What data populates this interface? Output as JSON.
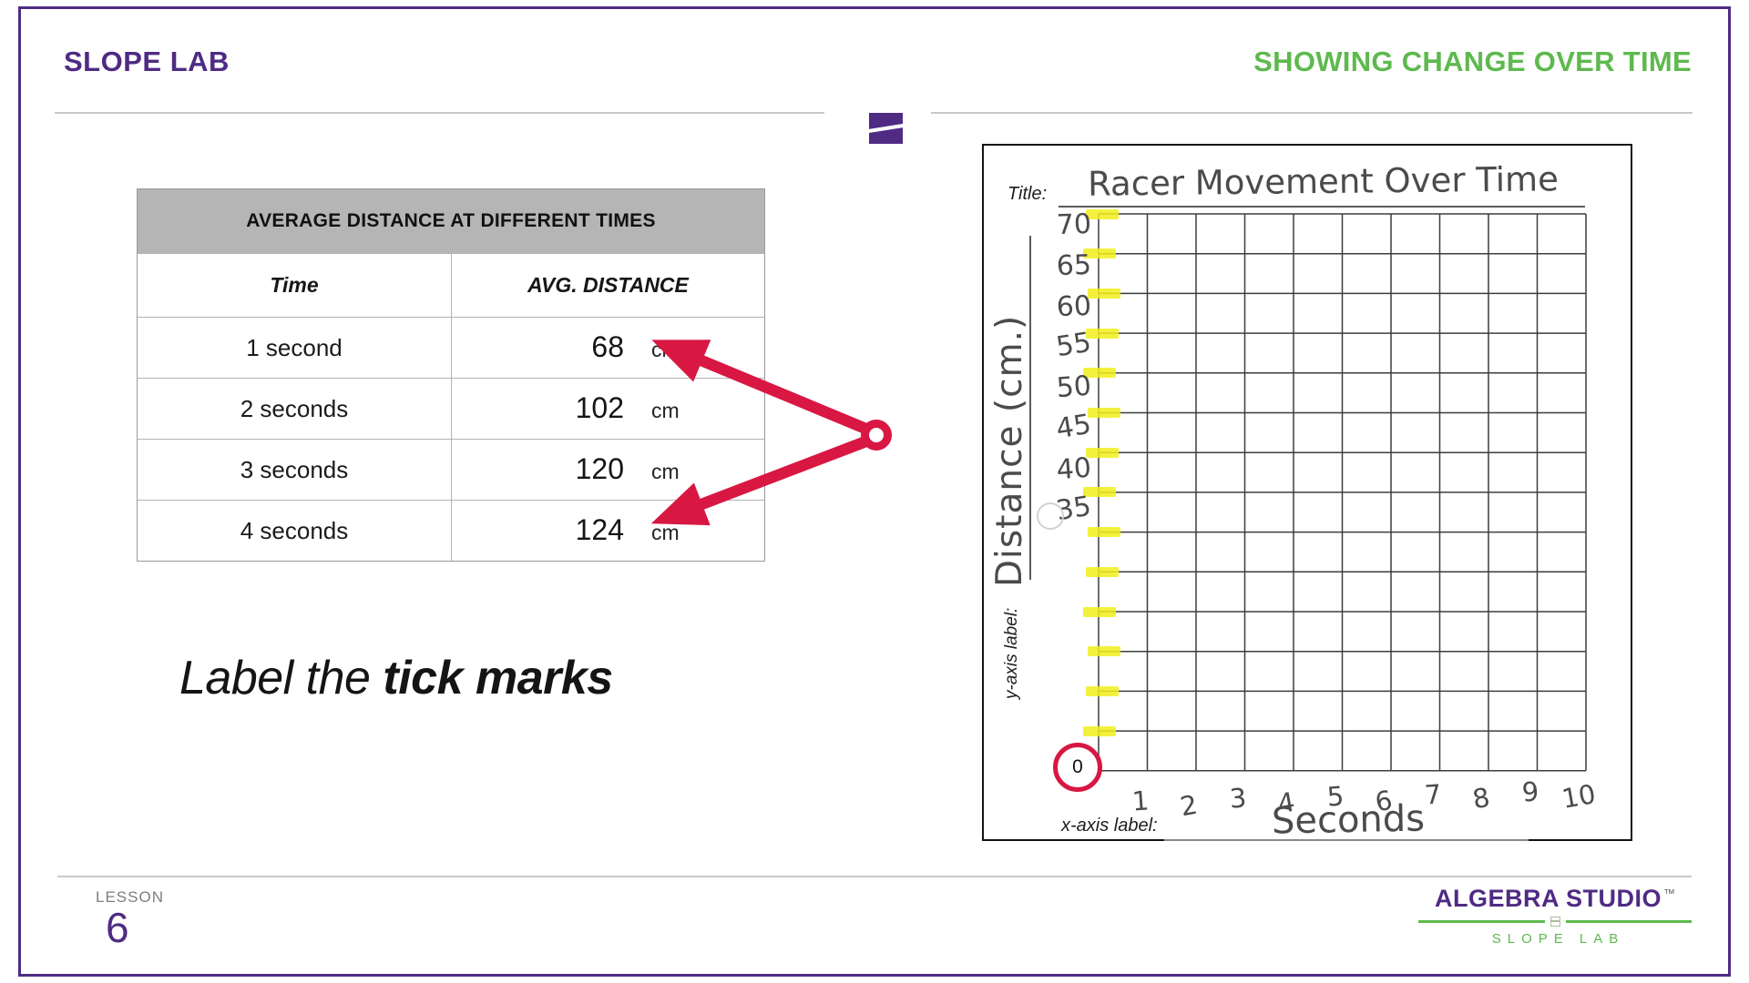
{
  "slide": {
    "brand": "SLOPE LAB",
    "headline": "SHOWING CHANGE OVER TIME",
    "lesson_label": "LESSON",
    "lesson_number": "6"
  },
  "table": {
    "title": "AVERAGE DISTANCE AT DIFFERENT TIMES",
    "col_time": "Time",
    "col_distance": "AVG. DISTANCE",
    "rows": [
      {
        "time": "1 second",
        "value": "68",
        "unit": "cm"
      },
      {
        "time": "2 seconds",
        "value": "102",
        "unit": "cm"
      },
      {
        "time": "3 seconds",
        "value": "120",
        "unit": "cm"
      },
      {
        "time": "4 seconds",
        "value": "124",
        "unit": "cm"
      }
    ]
  },
  "instruction": {
    "prefix": "Label the ",
    "emphasis": "tick marks"
  },
  "graph": {
    "title_caption": "Title:",
    "title_value": "Racer Movement Over Time",
    "y_axis_caption": "y-axis label:",
    "y_axis_value": "Distance (cm.)",
    "x_axis_caption": "x-axis label:",
    "x_axis_value": "Seconds",
    "origin_label": "0",
    "y_tick_labels": [
      "70",
      "65",
      "60",
      "55",
      "50",
      "45",
      "40",
      "35"
    ],
    "x_tick_labels": [
      "1",
      "2",
      "3",
      "4",
      "5",
      "6",
      "7",
      "8",
      "9",
      "10"
    ],
    "grid_cols": 10,
    "grid_rows": 14
  },
  "logo": {
    "line1": "ALGEBRA STUDIO",
    "tm": "™",
    "line2": "SLOPE LAB"
  },
  "colors": {
    "purple": "#4f2b84",
    "green": "#5eb94e",
    "crimson": "#d81743",
    "yellow": "#f2ef1c",
    "table-header-bg": "#b5b5b5",
    "grid-line": "#3d3d3d",
    "hand-ink": "#4b4b4b",
    "rule-gray": "#c9c9c9"
  },
  "chart_data": {
    "type": "table",
    "title": "AVERAGE DISTANCE AT DIFFERENT TIMES",
    "categories": [
      "1 second",
      "2 seconds",
      "3 seconds",
      "4 seconds"
    ],
    "values": [
      68,
      102,
      120,
      124
    ],
    "unit": "cm",
    "empty_graph": {
      "title": "Racer Movement Over Time",
      "xlabel": "Seconds",
      "ylabel": "Distance (cm.)",
      "x_ticks": [
        1,
        2,
        3,
        4,
        5,
        6,
        7,
        8,
        9,
        10
      ],
      "y_ticks_labeled": [
        70,
        65,
        60,
        55,
        50,
        45,
        40,
        35
      ],
      "y_tick_step": 5,
      "rows": 14,
      "cols": 10,
      "grid": true
    }
  }
}
